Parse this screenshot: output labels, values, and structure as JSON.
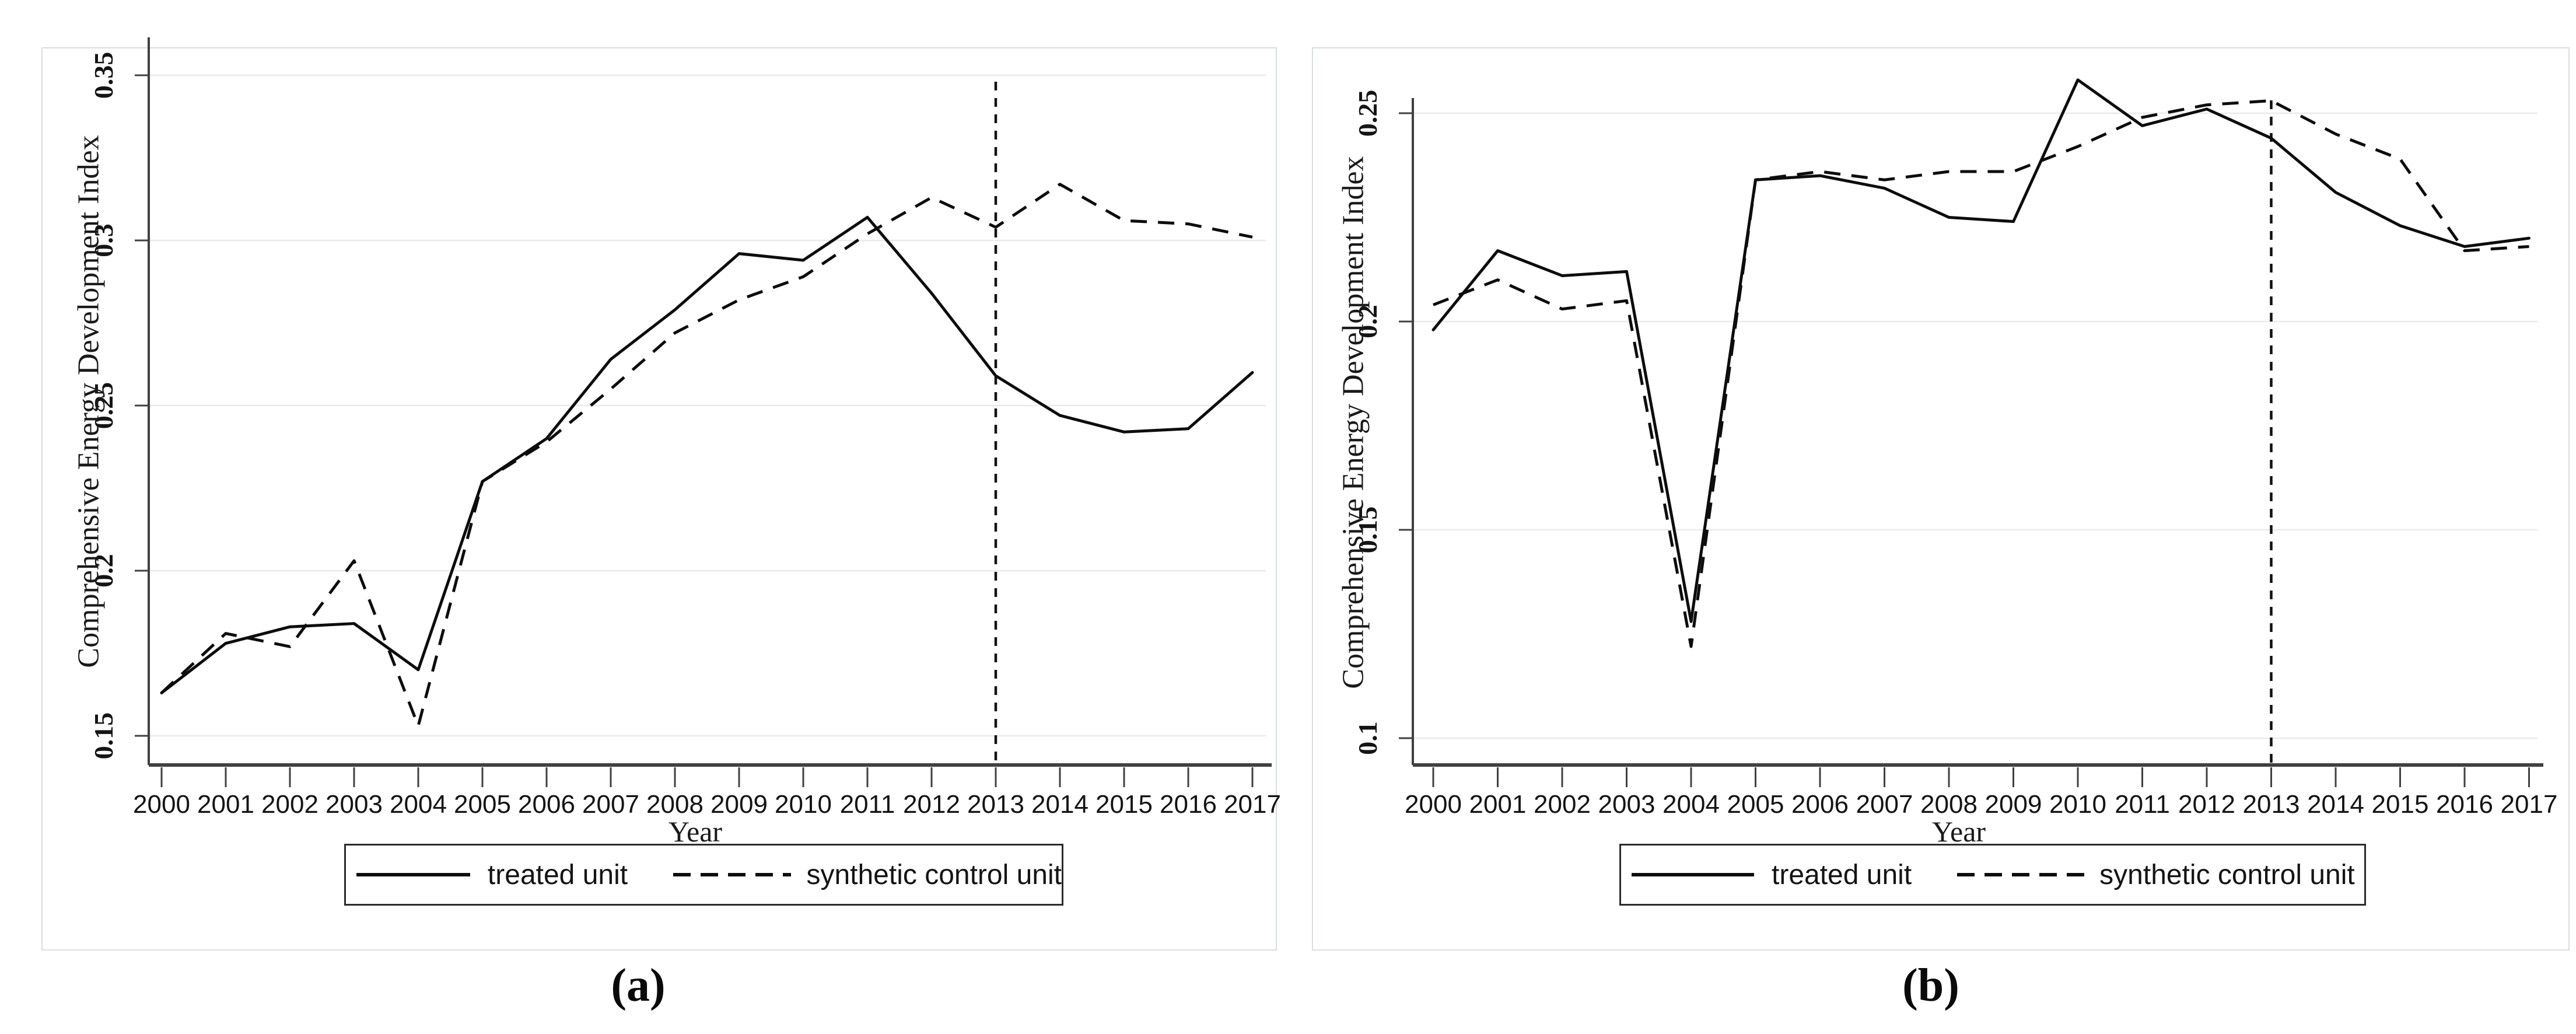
{
  "chart_data": [
    {
      "id": "a",
      "type": "line",
      "caption": "(a)",
      "xlabel": "Year",
      "ylabel": "Comprehensive Energy Development Index",
      "x": [
        2000,
        2001,
        2002,
        2003,
        2004,
        2005,
        2006,
        2007,
        2008,
        2009,
        2010,
        2011,
        2012,
        2013,
        2014,
        2015,
        2016,
        2017
      ],
      "x_tick_labels": [
        "2000",
        "2001",
        "2002",
        "2003",
        "2004",
        "2005",
        "2006",
        "2007",
        "2008",
        "2009",
        "2010",
        "2011",
        "2012",
        "2013",
        "2014",
        "2015",
        "2016",
        "2017"
      ],
      "y_ticks": [
        0.15,
        0.2,
        0.25,
        0.3,
        0.35
      ],
      "y_tick_labels": [
        "0.15",
        "0.2",
        "0.25",
        "0.3",
        "0.35"
      ],
      "ylim": [
        0.145,
        0.358
      ],
      "grid": "horizontal",
      "legend_position": "bottom",
      "treatment_line_x": 2013,
      "series": [
        {
          "name": "treated unit",
          "style": "solid",
          "values": [
            0.163,
            0.178,
            0.183,
            0.184,
            0.17,
            0.227,
            0.24,
            0.264,
            0.279,
            0.296,
            0.294,
            0.307,
            0.284,
            0.259,
            0.247,
            0.242,
            0.243,
            0.26
          ]
        },
        {
          "name": "synthetic control unit",
          "style": "dashed",
          "values": [
            0.163,
            0.181,
            0.177,
            0.203,
            0.153,
            0.227,
            0.239,
            0.255,
            0.272,
            0.282,
            0.289,
            0.302,
            0.313,
            0.304,
            0.317,
            0.306,
            0.305,
            0.301
          ]
        }
      ]
    },
    {
      "id": "b",
      "type": "line",
      "caption": "(b)",
      "xlabel": "Year",
      "ylabel": "Comprehensive Energy Development Index",
      "x": [
        2000,
        2001,
        2002,
        2003,
        2004,
        2005,
        2006,
        2007,
        2008,
        2009,
        2010,
        2011,
        2012,
        2013,
        2014,
        2015,
        2016,
        2017
      ],
      "x_tick_labels": [
        "2000",
        "2001",
        "2002",
        "2003",
        "2004",
        "2005",
        "2006",
        "2007",
        "2008",
        "2009",
        "2010",
        "2011",
        "2012",
        "2013",
        "2014",
        "2015",
        "2016",
        "2017"
      ],
      "y_ticks": [
        0.1,
        0.15,
        0.2,
        0.25
      ],
      "y_tick_labels": [
        "0.1",
        "0.15",
        "0.2",
        "0.25"
      ],
      "ylim": [
        0.095,
        0.262
      ],
      "grid": "horizontal",
      "legend_position": "bottom",
      "treatment_line_x": 2013,
      "series": [
        {
          "name": "treated unit",
          "style": "solid",
          "values": [
            0.198,
            0.217,
            0.211,
            0.212,
            0.128,
            0.234,
            0.235,
            0.232,
            0.225,
            0.224,
            0.258,
            0.247,
            0.251,
            0.244,
            0.231,
            0.223,
            0.218,
            0.22
          ]
        },
        {
          "name": "synthetic control unit",
          "style": "dashed",
          "values": [
            0.204,
            0.21,
            0.203,
            0.205,
            0.122,
            0.234,
            0.236,
            0.234,
            0.236,
            0.236,
            0.242,
            0.249,
            0.252,
            0.253,
            0.245,
            0.239,
            0.217,
            0.218
          ]
        }
      ]
    }
  ]
}
